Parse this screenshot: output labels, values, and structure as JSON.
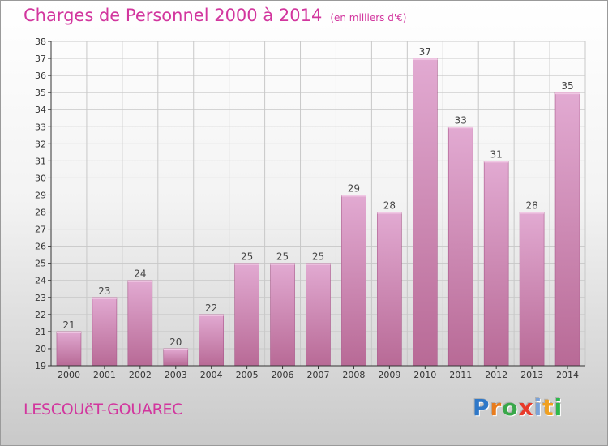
{
  "title": "Charges de Personnel 2000 à 2014",
  "subtitle": "(en milliers d'€)",
  "town": "LESCOUëT-GOUAREC",
  "brand": {
    "letters": [
      "P",
      "r",
      "o",
      "x",
      "i",
      "t",
      "i"
    ],
    "colors": [
      "#2f78c8",
      "#e87c1d",
      "#39a84a",
      "#e83a2a",
      "#7aa2d8",
      "#f0a020",
      "#2db84a"
    ]
  },
  "colors": {
    "accent": "#d2369e",
    "bar_top": "#e2aad2",
    "bar_bottom": "#b86a96",
    "grid": "#c8c8c8",
    "axis": "#333333"
  },
  "chart_data": {
    "type": "bar",
    "title": "Charges de Personnel 2000 à 2014",
    "subtitle": "(en milliers d'€)",
    "categories": [
      "2000",
      "2001",
      "2002",
      "2003",
      "2004",
      "2005",
      "2006",
      "2007",
      "2008",
      "2009",
      "2010",
      "2011",
      "2012",
      "2013",
      "2014"
    ],
    "values": [
      21,
      23,
      24,
      20,
      22,
      25,
      25,
      25,
      29,
      28,
      37,
      33,
      31,
      28,
      35
    ],
    "ylim": [
      19,
      38
    ],
    "yticks": [
      19,
      20,
      21,
      22,
      23,
      24,
      25,
      26,
      27,
      28,
      29,
      30,
      31,
      32,
      33,
      34,
      35,
      36,
      37,
      38
    ],
    "grid": true,
    "data_labels": true,
    "xlabel": "",
    "ylabel": ""
  }
}
